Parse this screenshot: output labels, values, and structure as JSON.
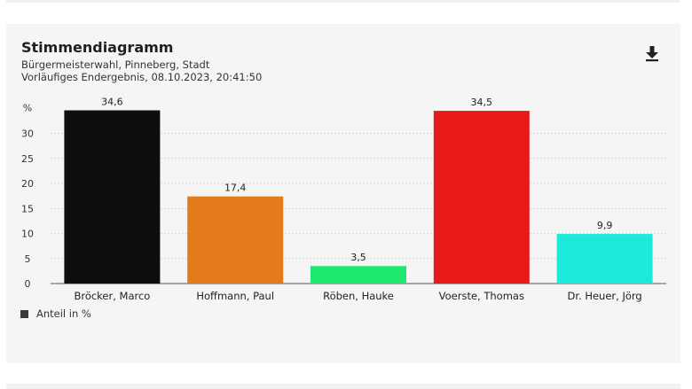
{
  "header": {
    "title": "Stimmendiagramm",
    "subtitle1": "Bürgermeisterwahl, Pinneberg, Stadt",
    "subtitle2": "Vorläufiges Endergebnis, 08.10.2023, 20:41:50"
  },
  "icons": {
    "download": "download-icon"
  },
  "legend": {
    "label": "Anteil in %",
    "color": "#3a3a3a"
  },
  "chart_data": {
    "type": "bar",
    "ylabel": "%",
    "ylim": [
      0,
      35
    ],
    "yticks": [
      "0",
      "5",
      "10",
      "15",
      "20",
      "25",
      "30"
    ],
    "grid": true,
    "legend_position": "bottom-left",
    "categories": [
      "Bröcker, Marco",
      "Hoffmann, Paul",
      "Röben, Hauke",
      "Voerste, Thomas",
      "Dr. Heuer, Jörg"
    ],
    "values": [
      34.6,
      17.4,
      3.5,
      34.5,
      9.9
    ],
    "value_labels": [
      "34,6",
      "17,4",
      "3,5",
      "34,5",
      "9,9"
    ],
    "colors": [
      "#0e0e10",
      "#e57a1a",
      "#1ee870",
      "#e81919",
      "#1de9d9"
    ],
    "series": [
      {
        "name": "Anteil in %",
        "values": [
          34.6,
          17.4,
          3.5,
          34.5,
          9.9
        ]
      }
    ]
  }
}
